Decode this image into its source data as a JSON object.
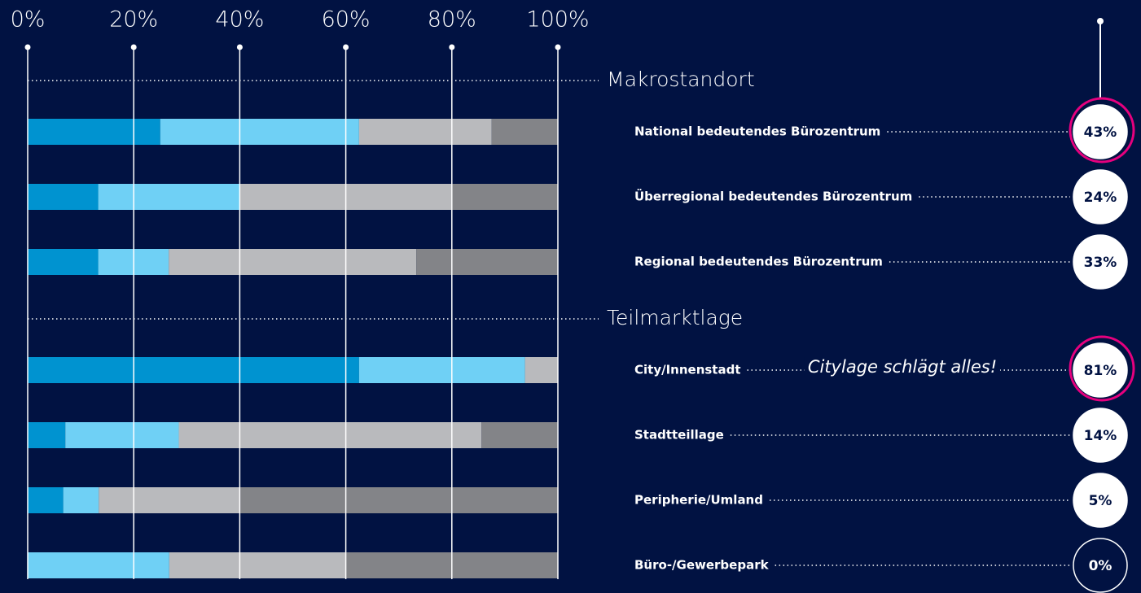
{
  "chart_data": {
    "type": "stacked-bar-horizontal",
    "xlim": [
      0,
      100
    ],
    "xticks": [
      {
        "value": 0,
        "label": "0%"
      },
      {
        "value": 20,
        "label": "20%"
      },
      {
        "value": 40,
        "label": "40%"
      },
      {
        "value": 60,
        "label": "60%"
      },
      {
        "value": 80,
        "label": "80%"
      },
      {
        "value": 100,
        "label": "100%"
      }
    ],
    "groups": [
      {
        "name": "Makrostandort",
        "categories": [
          "National bedeutendes Bürozentrum",
          "Überregional bedeutendes Bürozentrum",
          "Regional bedeutendes Bürozentrum"
        ]
      },
      {
        "name": "Teilmarktlage",
        "categories": [
          "City/Innenstadt",
          "Stadtteillage",
          "Peripherie/Umland",
          "Büro-/Gewerbepark"
        ]
      }
    ],
    "series": [
      {
        "color": "#0093d0",
        "values": [
          25,
          13.3,
          13.3,
          62.5,
          7.1,
          6.7,
          0
        ]
      },
      {
        "color": "#6fd0f5",
        "values": [
          37.5,
          26.7,
          13.3,
          31.3,
          21.4,
          6.7,
          26.7
        ]
      },
      {
        "color": "#b9babd",
        "values": [
          25,
          40,
          46.7,
          6.2,
          57.1,
          26.7,
          33.3
        ]
      },
      {
        "color": "#838488",
        "values": [
          12.5,
          20,
          26.7,
          0,
          14.3,
          60,
          40
        ]
      }
    ],
    "shares": {
      "values": [
        43,
        24,
        33,
        81,
        14,
        5,
        0
      ],
      "value_labels": [
        "43%",
        "24%",
        "33%",
        "81%",
        "14%",
        "5%",
        "0%"
      ],
      "highlight": [
        0,
        3
      ],
      "highlight_color": "#e6007e"
    },
    "annotation": {
      "text": "Citylage schlägt alles!",
      "row": 3,
      "color": "#e6007e"
    }
  }
}
